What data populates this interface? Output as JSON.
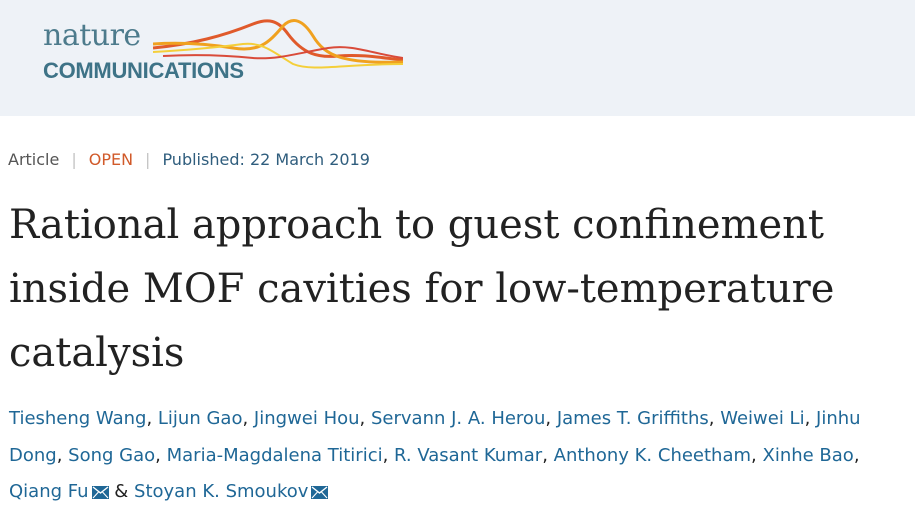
{
  "logo": {
    "line1": "nature",
    "line2": "COMMUNICATIONS"
  },
  "meta": {
    "type": "Article",
    "access": "OPEN",
    "published": "Published: 22 March 2019"
  },
  "title": "Rational approach to guest confinement inside MOF cavities for low-temperature catalysis",
  "authors": [
    "Tiesheng Wang",
    "Lijun Gao",
    "Jingwei Hou",
    "Servann J. A. Herou",
    "James T. Griffiths",
    "Weiwei Li",
    "Jinhu Dong",
    "Song Gao",
    "Maria-Magdalena Titirici",
    "R. Vasant Kumar",
    "Anthony K. Cheetham",
    "Xinhe Bao",
    "Qiang Fu",
    "Stoyan K. Smoukov"
  ],
  "authors_separator": ", ",
  "authors_last_separator": " & ",
  "icons": {
    "email": "mail-icon"
  }
}
